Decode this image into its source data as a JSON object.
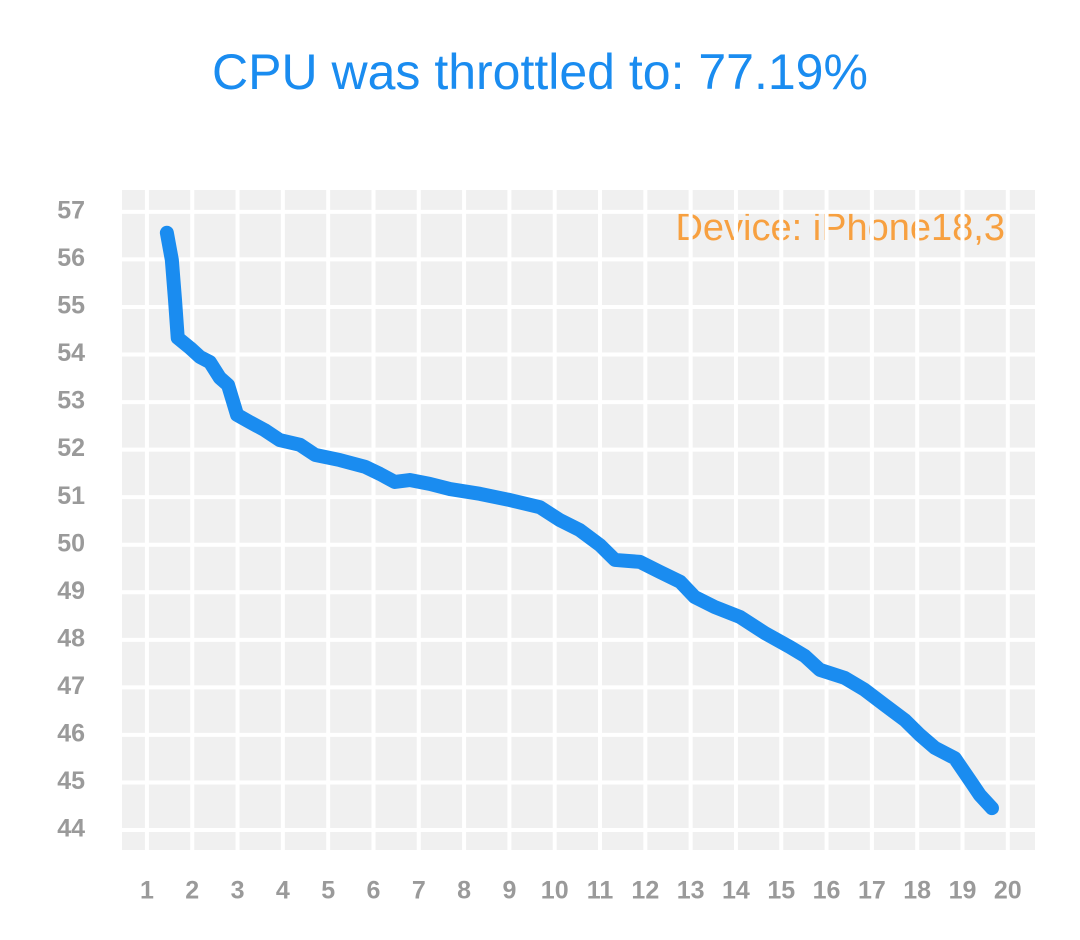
{
  "chart_data": {
    "type": "line",
    "title": "CPU was throttled to: 77.19%",
    "annotation": "Device: iPhone18,3",
    "grid": true,
    "xlim": [
      0.45,
      20.6
    ],
    "ylim": [
      43.58,
      57.46
    ],
    "xticks": [
      1,
      2,
      3,
      4,
      5,
      6,
      7,
      8,
      9,
      10,
      11,
      12,
      13,
      14,
      15,
      16,
      17,
      18,
      19,
      20
    ],
    "yticks": [
      44,
      45,
      46,
      47,
      48,
      49,
      50,
      51,
      52,
      53,
      54,
      55,
      56,
      57
    ],
    "series": [
      {
        "color": "#1a8cf0",
        "x": [
          1.44,
          1.55,
          1.62,
          1.68,
          1.95,
          2.17,
          2.39,
          2.61,
          2.79,
          2.99,
          3.27,
          3.6,
          3.93,
          4.38,
          4.71,
          5.26,
          5.81,
          6.14,
          6.47,
          6.8,
          7.24,
          7.69,
          8.35,
          9.01,
          9.67,
          10.11,
          10.55,
          11.0,
          11.33,
          11.88,
          12.32,
          12.77,
          13.09,
          13.53,
          14.09,
          14.64,
          15.19,
          15.52,
          15.85,
          16.4,
          16.84,
          17.28,
          17.73,
          18.06,
          18.39,
          18.83,
          19.16,
          19.38,
          19.65
        ],
        "values": [
          56.56,
          55.99,
          55.15,
          54.35,
          54.14,
          53.95,
          53.84,
          53.51,
          53.36,
          52.73,
          52.58,
          52.41,
          52.2,
          52.1,
          51.89,
          51.78,
          51.64,
          51.49,
          51.32,
          51.36,
          51.28,
          51.17,
          51.07,
          50.94,
          50.79,
          50.52,
          50.31,
          49.99,
          49.68,
          49.64,
          49.43,
          49.22,
          48.9,
          48.69,
          48.48,
          48.14,
          47.85,
          47.66,
          47.37,
          47.2,
          46.95,
          46.63,
          46.31,
          46.0,
          45.73,
          45.51,
          45.05,
          44.74,
          44.46
        ]
      }
    ]
  }
}
